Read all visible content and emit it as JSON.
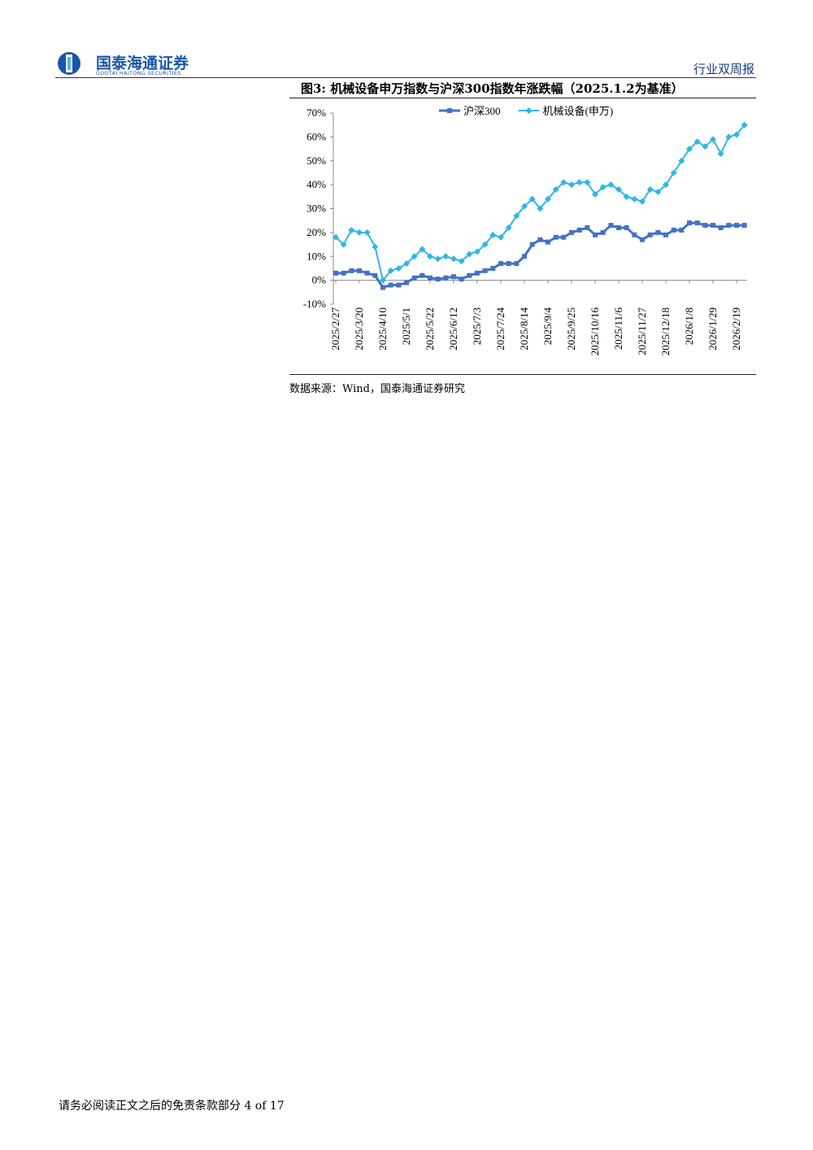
{
  "header": {
    "brand": "国泰海通证券",
    "brand_en": "GUOTAI HAITONG SECURITIES",
    "report_type": "行业双周报"
  },
  "figure": {
    "caption": "图3:  机械设备申万指数与沪深300指数年涨跌幅（2025.1.2为基准）",
    "source": "数据来源：Wind，国泰海通证券研究"
  },
  "chart_data": {
    "type": "line",
    "categories": [
      "2025/2/27",
      null,
      null,
      "2025/3/20",
      null,
      null,
      "2025/4/10",
      null,
      null,
      "2025/5/1",
      null,
      null,
      "2025/5/22",
      null,
      null,
      "2025/6/12",
      null,
      null,
      "2025/7/3",
      null,
      null,
      "2025/7/24",
      null,
      null,
      "2025/8/14",
      null,
      null,
      "2025/9/4",
      null,
      null,
      "2025/9/25",
      null,
      null,
      "2025/10/16",
      null,
      null,
      "2025/11/6",
      null,
      null,
      "2025/11/27",
      null,
      null,
      "2025/12/18",
      null,
      null,
      "2026/1/8",
      null,
      null,
      "2026/1/29",
      null,
      null,
      "2026/2/19",
      null
    ],
    "series": [
      {
        "name": "沪深300",
        "color": "#4472c4",
        "marker": "square",
        "values": [
          3,
          3,
          4,
          4,
          3,
          2,
          -3,
          -2,
          -2,
          -1,
          1,
          2,
          1,
          0.5,
          1,
          1.5,
          0.5,
          2,
          3,
          4,
          5,
          7,
          7,
          7,
          10,
          15,
          17,
          16,
          18,
          18,
          20,
          21,
          22,
          19,
          20,
          23,
          22,
          22,
          19,
          17,
          19,
          20,
          19,
          21,
          21,
          24,
          24,
          23,
          23,
          22,
          23,
          23,
          23
        ]
      },
      {
        "name": "机械设备(申万)",
        "color": "#2fb6e6",
        "marker": "diamond",
        "values": [
          18,
          15,
          21,
          20,
          20,
          14,
          0,
          4,
          5,
          7,
          10,
          13,
          10,
          9,
          10,
          9,
          8,
          11,
          12,
          15,
          19,
          18,
          22,
          27,
          31,
          34,
          30,
          34,
          38,
          41,
          40,
          41,
          41,
          36,
          39,
          40,
          38,
          35,
          34,
          33,
          38,
          37,
          40,
          45,
          50,
          55,
          58,
          56,
          59,
          53,
          60,
          61,
          65
        ]
      }
    ],
    "ylim": [
      -10,
      70
    ],
    "yticks": [
      {
        "value": -10,
        "label": "-10%"
      },
      {
        "value": 0,
        "label": "0%"
      },
      {
        "value": 10,
        "label": "10%"
      },
      {
        "value": 20,
        "label": "20%"
      },
      {
        "value": 30,
        "label": "30%"
      },
      {
        "value": 40,
        "label": "40%"
      },
      {
        "value": 50,
        "label": "50%"
      },
      {
        "value": 60,
        "label": "60%"
      },
      {
        "value": 70,
        "label": "70%"
      }
    ],
    "grid": false,
    "legend": "top"
  },
  "footer": {
    "disclaimer": "请务必阅读正文之后的免责条款部分",
    "page": "4 of 17"
  }
}
